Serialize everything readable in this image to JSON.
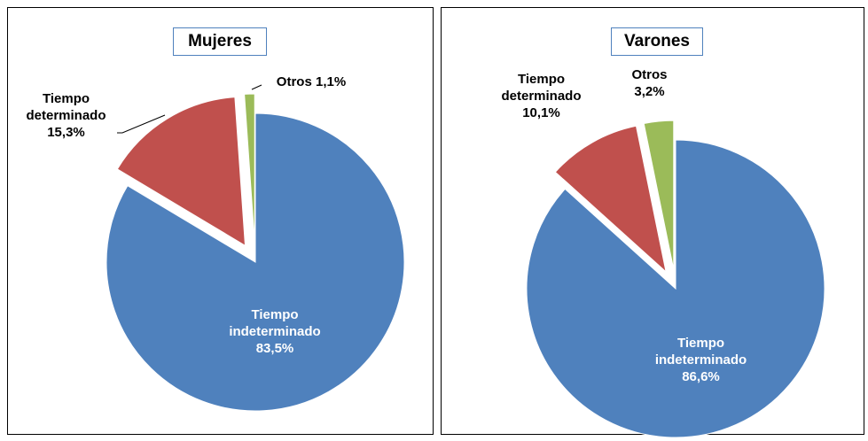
{
  "chart_data": [
    {
      "type": "pie",
      "title": "Mujeres",
      "categories": [
        "Tiempo indeterminado",
        "Tiempo determinado",
        "Otros"
      ],
      "values": [
        83.5,
        15.3,
        1.1
      ],
      "value_labels": [
        "83,5%",
        "15,3%",
        "1,1%"
      ],
      "colors": [
        "#4f81bd",
        "#c0504d",
        "#9bbb59"
      ]
    },
    {
      "type": "pie",
      "title": "Varones",
      "categories": [
        "Tiempo indeterminado",
        "Tiempo determinado",
        "Otros"
      ],
      "values": [
        86.6,
        10.1,
        3.2
      ],
      "value_labels": [
        "86,6%",
        "10,1%",
        "3,2%"
      ],
      "colors": [
        "#4f81bd",
        "#c0504d",
        "#9bbb59"
      ]
    }
  ]
}
